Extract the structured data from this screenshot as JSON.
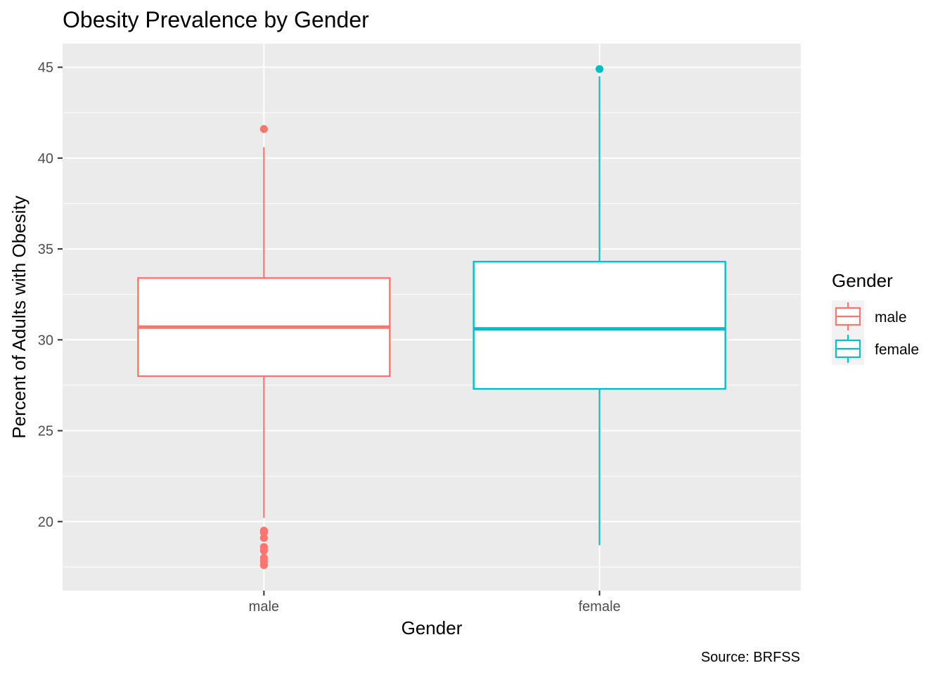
{
  "chart_data": {
    "type": "box",
    "title": "Obesity Prevalence by Gender",
    "xlabel": "Gender",
    "ylabel": "Percent of Adults with Obesity",
    "caption": "Source: BRFSS",
    "ylim": [
      16.2,
      46.3
    ],
    "y_ticks": [
      20,
      25,
      30,
      35,
      40,
      45
    ],
    "grid": true,
    "categories": [
      "male",
      "female"
    ],
    "legend": {
      "title": "Gender",
      "position": "right",
      "entries": [
        "male",
        "female"
      ]
    },
    "series": [
      {
        "name": "male",
        "color": "#F8766D",
        "whisker_low": 20.2,
        "q1": 28.0,
        "median": 30.7,
        "q3": 33.4,
        "whisker_high": 40.6,
        "outliers": [
          41.6,
          19.5,
          19.4,
          19.1,
          18.6,
          18.4,
          18.0,
          17.8,
          17.6
        ]
      },
      {
        "name": "female",
        "color": "#00BFC4",
        "whisker_low": 18.7,
        "q1": 27.3,
        "median": 30.6,
        "q3": 34.3,
        "whisker_high": 44.5,
        "outliers": [
          44.9
        ]
      }
    ]
  }
}
